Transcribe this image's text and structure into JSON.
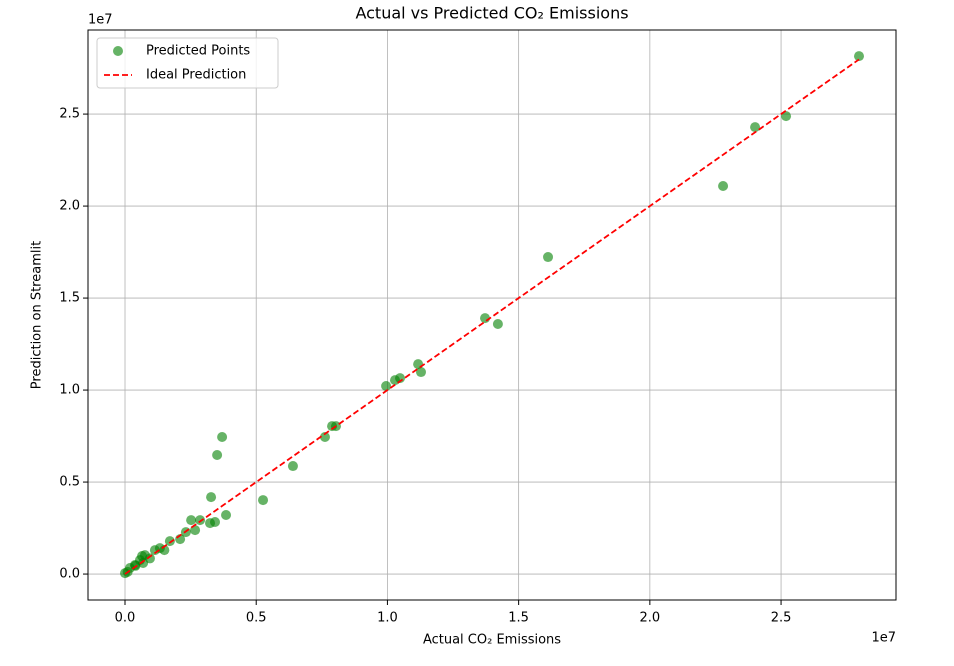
{
  "chart_data": {
    "type": "scatter",
    "title": "Actual vs Predicted CO₂ Emissions",
    "x_label": "Actual CO₂ Emissions",
    "y_label": "Prediction on Streamlit",
    "x_offset_label": "1e7",
    "y_offset_label": "1e7",
    "xlim": [
      -0.141,
      2.938
    ],
    "ylim": [
      -0.141,
      2.957
    ],
    "xticks": [
      {
        "value": 0,
        "label": "0.0"
      },
      {
        "value": 0.5,
        "label": "0.5"
      },
      {
        "value": 1,
        "label": "1.0"
      },
      {
        "value": 1.5,
        "label": "1.5"
      },
      {
        "value": 2,
        "label": "2.0"
      },
      {
        "value": 2.5,
        "label": "2.5"
      }
    ],
    "yticks": [
      {
        "value": 0,
        "label": "0.0"
      },
      {
        "value": 0.5,
        "label": "0.5"
      },
      {
        "value": 1,
        "label": "1.0"
      },
      {
        "value": 1.5,
        "label": "1.5"
      },
      {
        "value": 2,
        "label": "2.0"
      },
      {
        "value": 2.5,
        "label": "2.5"
      }
    ],
    "grid": true,
    "legend": "upper-left",
    "series": [
      {
        "name": "Predicted Points",
        "type": "scatter",
        "color": "#008000",
        "x": [
          2.797,
          2.519,
          2.401,
          2.279,
          1.612,
          1.372,
          1.421,
          1.117,
          1.128,
          1.048,
          1.029,
          0.995,
          0.804,
          0.789,
          0.762,
          0.64,
          0.526,
          0.37,
          0.351,
          0.385,
          0.328,
          0.343,
          0.324,
          0.286,
          0.267,
          0.252,
          0.232,
          0.171,
          0.133,
          0.114,
          0.076,
          0.065,
          0.057,
          0.038,
          0.019,
          0,
          0.069,
          0.095,
          0.15,
          0.21,
          0.04,
          0.01
        ],
        "values": [
          2.815,
          2.489,
          2.429,
          2.109,
          1.723,
          1.391,
          1.359,
          1.141,
          1.098,
          1.065,
          1.054,
          1.022,
          0.804,
          0.804,
          0.745,
          0.587,
          0.402,
          0.745,
          0.647,
          0.321,
          0.418,
          0.283,
          0.277,
          0.293,
          0.239,
          0.293,
          0.228,
          0.179,
          0.141,
          0.13,
          0.103,
          0.098,
          0.076,
          0.049,
          0.033,
          0.005,
          0.06,
          0.085,
          0.13,
          0.19,
          0.045,
          0.012
        ]
      },
      {
        "name": "Ideal Prediction",
        "type": "line",
        "dashed": true,
        "color": "#ff0000",
        "x": [
          0,
          2.797
        ],
        "values": [
          0,
          2.797
        ]
      }
    ]
  }
}
